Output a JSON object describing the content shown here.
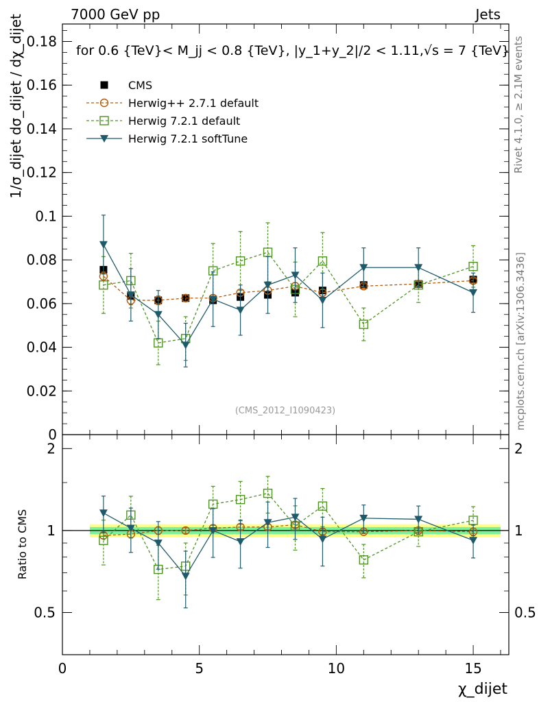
{
  "header": {
    "energy_label": "7000 GeV pp",
    "category_label": "Jets"
  },
  "side_text": {
    "rivet": "Rivet 4.1.0, ≥ 2.1M events",
    "mcplots": "mcplots.cern.ch [arXiv:1306.3436]"
  },
  "watermark": "(CMS_2012_I1090423)",
  "chart_data": {
    "type": "line",
    "title": "for 0.6 {TeV}< M_jj < 0.8 {TeV}, |y_1+y_2|/2 < 1.11,√s = 7 {TeV}",
    "xlabel": "χ_dijet",
    "ylabel": "1/σ_dijet dσ_dijet / dχ_dijet",
    "ratio_ylabel": "Ratio to CMS",
    "xlim": [
      0,
      16.3
    ],
    "ylim": [
      0,
      0.188
    ],
    "ratio_ylim": [
      0.35,
      2.25
    ],
    "x_ticks": [
      "0",
      "5",
      "10",
      "15"
    ],
    "y_ticks": [
      "0",
      "0.02",
      "0.04",
      "0.06",
      "0.08",
      "0.1",
      "0.12",
      "0.14",
      "0.16",
      "0.18"
    ],
    "ratio_ticks": [
      "0.5",
      "1",
      "2"
    ],
    "x": [
      1.5,
      2.5,
      3.5,
      4.5,
      5.5,
      6.5,
      7.5,
      8.5,
      9.5,
      11,
      13,
      15
    ],
    "legend": [
      "CMS",
      "Herwig++ 2.7.1 default",
      "Herwig 7.2.1 default",
      "Herwig 7.2.1 softTune"
    ],
    "series": [
      {
        "name": "CMS",
        "color": "#000000",
        "values": [
          0.0755,
          0.0635,
          0.0615,
          0.0625,
          0.0615,
          0.063,
          0.064,
          0.065,
          0.066,
          0.0685,
          0.069,
          0.071
        ],
        "band_inner": 0.03,
        "band_outer": 0.055
      },
      {
        "name": "Herwig++ 2.7.1 default",
        "color": "#b35806",
        "values": [
          0.0725,
          0.0615,
          0.0615,
          0.0625,
          0.0625,
          0.065,
          0.066,
          0.068,
          0.065,
          0.068,
          0.069,
          0.0705
        ],
        "err": [
          0.002,
          0.002,
          0.002,
          0.0015,
          0.0015,
          0.0015,
          0.0015,
          0.0015,
          0.0015,
          0.001,
          0.001,
          0.001
        ],
        "ratio": [
          0.96,
          0.97,
          1.0,
          1.0,
          1.02,
          1.03,
          1.03,
          1.05,
          0.99,
          0.99,
          1.0,
          0.99
        ]
      },
      {
        "name": "Herwig 7.2.1 default",
        "color": "#4d9221",
        "values": [
          0.0685,
          0.0705,
          0.042,
          0.044,
          0.075,
          0.0795,
          0.0835,
          0.0665,
          0.0795,
          0.0505,
          0.0685,
          0.077
        ],
        "err": [
          0.013,
          0.0125,
          0.01,
          0.01,
          0.0125,
          0.0135,
          0.0135,
          0.0125,
          0.013,
          0.0075,
          0.008,
          0.0095
        ],
        "ratio": [
          0.92,
          1.14,
          0.72,
          0.74,
          1.25,
          1.3,
          1.37,
          1.04,
          1.23,
          0.78,
          0.99,
          1.09
        ]
      },
      {
        "name": "Herwig 7.2.1 softTune",
        "color": "#1f5a6b",
        "values": [
          0.087,
          0.064,
          0.055,
          0.041,
          0.062,
          0.057,
          0.0685,
          0.073,
          0.0615,
          0.0765,
          0.0765,
          0.065
        ],
        "err": [
          0.0135,
          0.012,
          0.011,
          0.01,
          0.0125,
          0.0115,
          0.013,
          0.0125,
          0.0125,
          0.009,
          0.009,
          0.009
        ],
        "ratio": [
          1.16,
          1.02,
          0.9,
          0.68,
          1.0,
          0.91,
          1.07,
          1.12,
          0.93,
          1.11,
          1.1,
          0.92
        ]
      }
    ]
  }
}
